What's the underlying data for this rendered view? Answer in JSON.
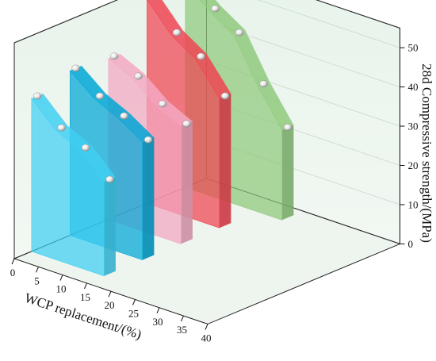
{
  "chart_data": {
    "type": "area",
    "title": "",
    "xlabel": "WCP replacement/(%)",
    "ylabel": "",
    "zlabel": "28d Compressive strength/(MPa)",
    "x_ticks": [
      "0",
      "5",
      "10",
      "15",
      "20",
      "25",
      "30",
      "35",
      "40"
    ],
    "z_ticks": [
      "0",
      "10",
      "20",
      "30",
      "40",
      "50"
    ],
    "zlim": [
      0,
      55
    ],
    "grid": true,
    "legend": "none",
    "series": [
      {
        "color": "#3fcff2",
        "values": [
          39,
          33,
          30,
          24
        ]
      },
      {
        "color": "#00a6d6",
        "values": [
          42,
          37,
          34,
          30
        ]
      },
      {
        "color": "#f3a8c2",
        "values": [
          41,
          38,
          33,
          30
        ]
      },
      {
        "color": "#f04452",
        "values": [
          52,
          45,
          41,
          33
        ]
      },
      {
        "color": "#8fc97c",
        "values": [
          52,
          47,
          43,
          32,
          23
        ]
      }
    ]
  }
}
